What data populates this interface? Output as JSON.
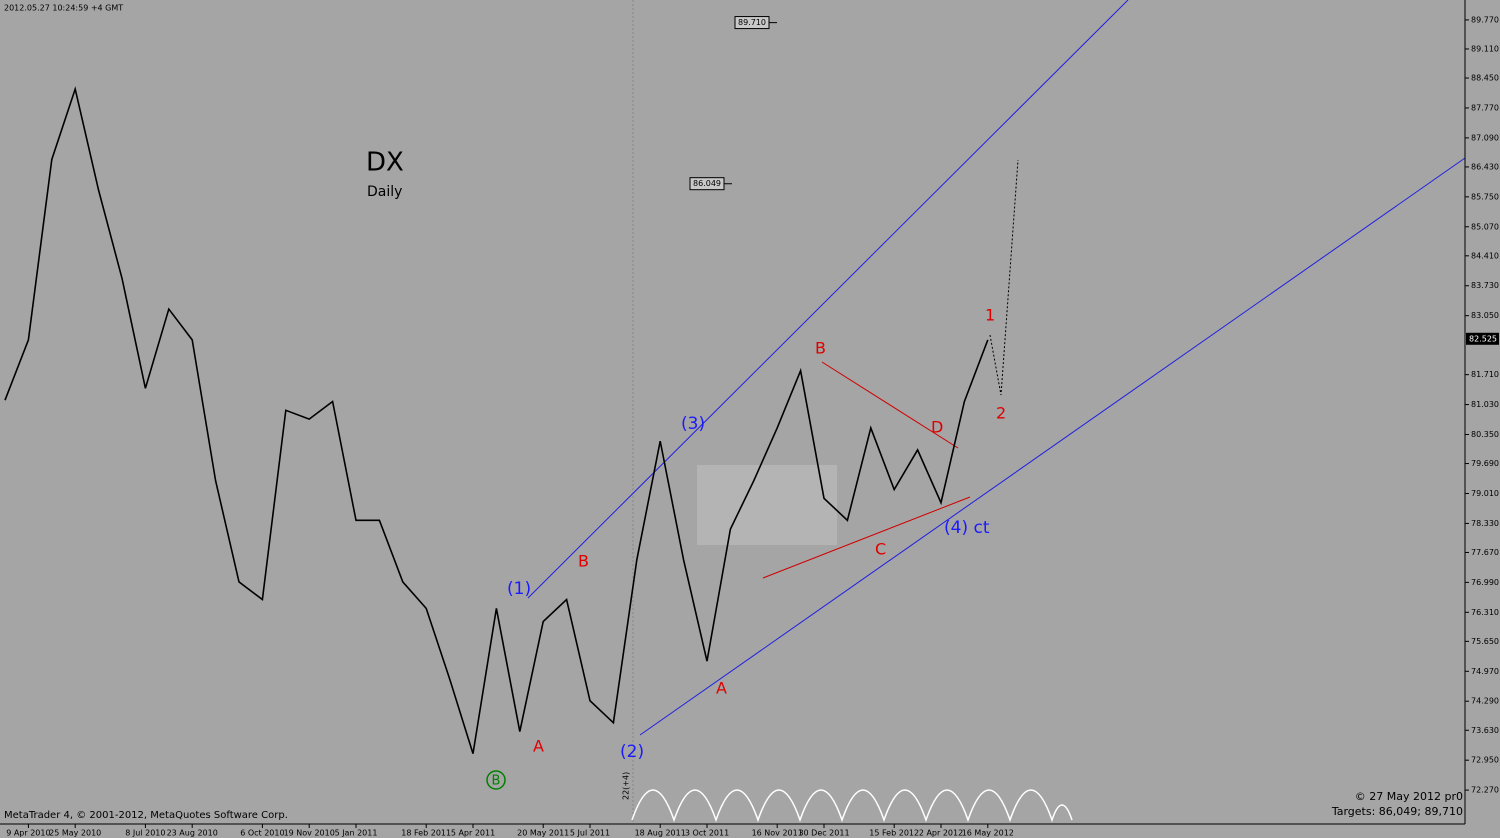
{
  "header": "2012.05.27 10:24:59 +4 GMT",
  "footer_left": "MetaTrader 4, © 2001-2012, MetaQuotes Software Corp.",
  "footer_right": "© 27 May 2012 pr0",
  "footer_targets": "Targets: 86,049; 89,710",
  "chart_data": {
    "type": "line",
    "title": "DX",
    "subtitle": "Daily",
    "categories": [
      null,
      "9 Apr 2010",
      null,
      "25 May 2010",
      null,
      null,
      "8 Jul 2010",
      null,
      "23 Aug 2010",
      null,
      null,
      "6 Oct 2010",
      null,
      "19 Nov 2010",
      null,
      "5 Jan 2011",
      null,
      null,
      "18 Feb 2011",
      null,
      "5 Apr 2011",
      null,
      null,
      "20 May 2011",
      null,
      "5 Jul 2011",
      null,
      null,
      "18 Aug 2011",
      null,
      "3 Oct 2011",
      null,
      null,
      "16 Nov 2011",
      null,
      "30 Dec 2011",
      null,
      null,
      "15 Feb 2012",
      null,
      "2 Apr 2012",
      null,
      "16 May 2012"
    ],
    "series": [
      {
        "name": "DX",
        "color": "#000000",
        "values": [
          81.13,
          82.5,
          86.6,
          88.2,
          85.9,
          83.9,
          81.4,
          83.2,
          82.5,
          79.3,
          77.0,
          76.6,
          80.9,
          80.7,
          81.1,
          78.4,
          78.4,
          77.0,
          76.4,
          74.8,
          73.1,
          76.4,
          73.6,
          76.1,
          76.6,
          74.3,
          73.8,
          77.5,
          80.2,
          77.5,
          75.2,
          78.2,
          79.3,
          80.5,
          81.8,
          78.9,
          78.4,
          80.5,
          79.1,
          80.0,
          78.8,
          81.1,
          82.5
        ]
      }
    ],
    "ylim": [
      71.5,
      90.2
    ],
    "yticks": [
      {
        "value": 89.77,
        "label": "89.770"
      },
      {
        "value": 89.11,
        "label": "89.110"
      },
      {
        "value": 88.45,
        "label": "88.450"
      },
      {
        "value": 87.77,
        "label": "87.770"
      },
      {
        "value": 87.09,
        "label": "87.090"
      },
      {
        "value": 86.43,
        "label": "86.430"
      },
      {
        "value": 85.75,
        "label": "85.750"
      },
      {
        "value": 85.07,
        "label": "85.070"
      },
      {
        "value": 84.41,
        "label": "84.410"
      },
      {
        "value": 83.73,
        "label": "83.730"
      },
      {
        "value": 83.05,
        "label": "83.050"
      },
      {
        "value": 81.71,
        "label": "81.710"
      },
      {
        "value": 81.03,
        "label": "81.030"
      },
      {
        "value": 80.35,
        "label": "80.350"
      },
      {
        "value": 79.69,
        "label": "79.690"
      },
      {
        "value": 79.01,
        "label": "79.010"
      },
      {
        "value": 78.33,
        "label": "78.330"
      },
      {
        "value": 77.67,
        "label": "77.670"
      },
      {
        "value": 76.99,
        "label": "76.990"
      },
      {
        "value": 76.31,
        "label": "76.310"
      },
      {
        "value": 75.65,
        "label": "75.650"
      },
      {
        "value": 74.97,
        "label": "74.970"
      },
      {
        "value": 74.29,
        "label": "74.290"
      },
      {
        "value": 73.63,
        "label": "73.630"
      },
      {
        "value": 72.95,
        "label": "72.950"
      },
      {
        "value": 72.27,
        "label": "72.270"
      }
    ],
    "current_price": {
      "value": 82.525,
      "label": "82.525"
    },
    "price_marks": [
      {
        "value": 89.71,
        "label": "89.710"
      },
      {
        "value": 86.049,
        "label": "86.049"
      }
    ],
    "grid": false,
    "annotations": [
      "(1)",
      "(2)",
      "(3)",
      "(4) ct",
      "B",
      "A",
      "B",
      "A",
      "B",
      "C",
      "D",
      "1",
      "2",
      "22(+4)"
    ]
  }
}
